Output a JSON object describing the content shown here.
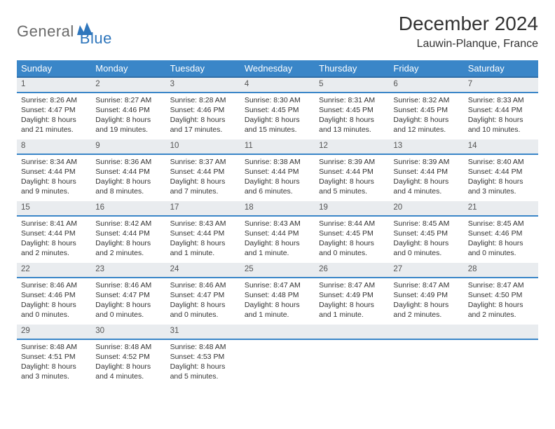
{
  "brand": {
    "text1": "General",
    "text2": "Blue",
    "text1_color": "#6a6a6a",
    "text2_color": "#2f76bc",
    "mark_color": "#2f76bc"
  },
  "title": "December 2024",
  "location": "Lauwin-Planque, France",
  "colors": {
    "header_bg": "#3a86c8",
    "header_border": "#2f6ea8",
    "daynum_bg": "#e9ecef",
    "daynum_border": "#3a86c8",
    "text": "#333333",
    "bg": "#ffffff"
  },
  "fonts": {
    "title_size": 28,
    "location_size": 16,
    "dayname_size": 13,
    "cell_size": 10.5
  },
  "day_names": [
    "Sunday",
    "Monday",
    "Tuesday",
    "Wednesday",
    "Thursday",
    "Friday",
    "Saturday"
  ],
  "weeks": [
    [
      {
        "n": "1",
        "sr": "Sunrise: 8:26 AM",
        "ss": "Sunset: 4:47 PM",
        "d1": "Daylight: 8 hours",
        "d2": "and 21 minutes."
      },
      {
        "n": "2",
        "sr": "Sunrise: 8:27 AM",
        "ss": "Sunset: 4:46 PM",
        "d1": "Daylight: 8 hours",
        "d2": "and 19 minutes."
      },
      {
        "n": "3",
        "sr": "Sunrise: 8:28 AM",
        "ss": "Sunset: 4:46 PM",
        "d1": "Daylight: 8 hours",
        "d2": "and 17 minutes."
      },
      {
        "n": "4",
        "sr": "Sunrise: 8:30 AM",
        "ss": "Sunset: 4:45 PM",
        "d1": "Daylight: 8 hours",
        "d2": "and 15 minutes."
      },
      {
        "n": "5",
        "sr": "Sunrise: 8:31 AM",
        "ss": "Sunset: 4:45 PM",
        "d1": "Daylight: 8 hours",
        "d2": "and 13 minutes."
      },
      {
        "n": "6",
        "sr": "Sunrise: 8:32 AM",
        "ss": "Sunset: 4:45 PM",
        "d1": "Daylight: 8 hours",
        "d2": "and 12 minutes."
      },
      {
        "n": "7",
        "sr": "Sunrise: 8:33 AM",
        "ss": "Sunset: 4:44 PM",
        "d1": "Daylight: 8 hours",
        "d2": "and 10 minutes."
      }
    ],
    [
      {
        "n": "8",
        "sr": "Sunrise: 8:34 AM",
        "ss": "Sunset: 4:44 PM",
        "d1": "Daylight: 8 hours",
        "d2": "and 9 minutes."
      },
      {
        "n": "9",
        "sr": "Sunrise: 8:36 AM",
        "ss": "Sunset: 4:44 PM",
        "d1": "Daylight: 8 hours",
        "d2": "and 8 minutes."
      },
      {
        "n": "10",
        "sr": "Sunrise: 8:37 AM",
        "ss": "Sunset: 4:44 PM",
        "d1": "Daylight: 8 hours",
        "d2": "and 7 minutes."
      },
      {
        "n": "11",
        "sr": "Sunrise: 8:38 AM",
        "ss": "Sunset: 4:44 PM",
        "d1": "Daylight: 8 hours",
        "d2": "and 6 minutes."
      },
      {
        "n": "12",
        "sr": "Sunrise: 8:39 AM",
        "ss": "Sunset: 4:44 PM",
        "d1": "Daylight: 8 hours",
        "d2": "and 5 minutes."
      },
      {
        "n": "13",
        "sr": "Sunrise: 8:39 AM",
        "ss": "Sunset: 4:44 PM",
        "d1": "Daylight: 8 hours",
        "d2": "and 4 minutes."
      },
      {
        "n": "14",
        "sr": "Sunrise: 8:40 AM",
        "ss": "Sunset: 4:44 PM",
        "d1": "Daylight: 8 hours",
        "d2": "and 3 minutes."
      }
    ],
    [
      {
        "n": "15",
        "sr": "Sunrise: 8:41 AM",
        "ss": "Sunset: 4:44 PM",
        "d1": "Daylight: 8 hours",
        "d2": "and 2 minutes."
      },
      {
        "n": "16",
        "sr": "Sunrise: 8:42 AM",
        "ss": "Sunset: 4:44 PM",
        "d1": "Daylight: 8 hours",
        "d2": "and 2 minutes."
      },
      {
        "n": "17",
        "sr": "Sunrise: 8:43 AM",
        "ss": "Sunset: 4:44 PM",
        "d1": "Daylight: 8 hours",
        "d2": "and 1 minute."
      },
      {
        "n": "18",
        "sr": "Sunrise: 8:43 AM",
        "ss": "Sunset: 4:44 PM",
        "d1": "Daylight: 8 hours",
        "d2": "and 1 minute."
      },
      {
        "n": "19",
        "sr": "Sunrise: 8:44 AM",
        "ss": "Sunset: 4:45 PM",
        "d1": "Daylight: 8 hours",
        "d2": "and 0 minutes."
      },
      {
        "n": "20",
        "sr": "Sunrise: 8:45 AM",
        "ss": "Sunset: 4:45 PM",
        "d1": "Daylight: 8 hours",
        "d2": "and 0 minutes."
      },
      {
        "n": "21",
        "sr": "Sunrise: 8:45 AM",
        "ss": "Sunset: 4:46 PM",
        "d1": "Daylight: 8 hours",
        "d2": "and 0 minutes."
      }
    ],
    [
      {
        "n": "22",
        "sr": "Sunrise: 8:46 AM",
        "ss": "Sunset: 4:46 PM",
        "d1": "Daylight: 8 hours",
        "d2": "and 0 minutes."
      },
      {
        "n": "23",
        "sr": "Sunrise: 8:46 AM",
        "ss": "Sunset: 4:47 PM",
        "d1": "Daylight: 8 hours",
        "d2": "and 0 minutes."
      },
      {
        "n": "24",
        "sr": "Sunrise: 8:46 AM",
        "ss": "Sunset: 4:47 PM",
        "d1": "Daylight: 8 hours",
        "d2": "and 0 minutes."
      },
      {
        "n": "25",
        "sr": "Sunrise: 8:47 AM",
        "ss": "Sunset: 4:48 PM",
        "d1": "Daylight: 8 hours",
        "d2": "and 1 minute."
      },
      {
        "n": "26",
        "sr": "Sunrise: 8:47 AM",
        "ss": "Sunset: 4:49 PM",
        "d1": "Daylight: 8 hours",
        "d2": "and 1 minute."
      },
      {
        "n": "27",
        "sr": "Sunrise: 8:47 AM",
        "ss": "Sunset: 4:49 PM",
        "d1": "Daylight: 8 hours",
        "d2": "and 2 minutes."
      },
      {
        "n": "28",
        "sr": "Sunrise: 8:47 AM",
        "ss": "Sunset: 4:50 PM",
        "d1": "Daylight: 8 hours",
        "d2": "and 2 minutes."
      }
    ],
    [
      {
        "n": "29",
        "sr": "Sunrise: 8:48 AM",
        "ss": "Sunset: 4:51 PM",
        "d1": "Daylight: 8 hours",
        "d2": "and 3 minutes."
      },
      {
        "n": "30",
        "sr": "Sunrise: 8:48 AM",
        "ss": "Sunset: 4:52 PM",
        "d1": "Daylight: 8 hours",
        "d2": "and 4 minutes."
      },
      {
        "n": "31",
        "sr": "Sunrise: 8:48 AM",
        "ss": "Sunset: 4:53 PM",
        "d1": "Daylight: 8 hours",
        "d2": "and 5 minutes."
      },
      {
        "n": "",
        "sr": "",
        "ss": "",
        "d1": "",
        "d2": ""
      },
      {
        "n": "",
        "sr": "",
        "ss": "",
        "d1": "",
        "d2": ""
      },
      {
        "n": "",
        "sr": "",
        "ss": "",
        "d1": "",
        "d2": ""
      },
      {
        "n": "",
        "sr": "",
        "ss": "",
        "d1": "",
        "d2": ""
      }
    ]
  ]
}
